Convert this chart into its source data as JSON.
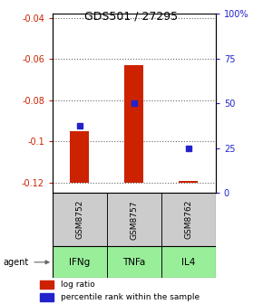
{
  "title": "GDS501 / 27295",
  "samples": [
    "GSM8752",
    "GSM8757",
    "GSM8762"
  ],
  "agents": [
    "IFNg",
    "TNFa",
    "IL4"
  ],
  "log_ratios": [
    -0.095,
    -0.063,
    -0.119
  ],
  "log_ratio_base": -0.12,
  "percentile_ranks": [
    37.5,
    50.0,
    25.0
  ],
  "ylim_left": [
    -0.125,
    -0.038
  ],
  "ylim_right": [
    0,
    100
  ],
  "yticks_left": [
    -0.12,
    -0.1,
    -0.08,
    -0.06,
    -0.04
  ],
  "yticks_right": [
    0,
    25,
    50,
    75,
    100
  ],
  "bar_color": "#cc2200",
  "dot_color": "#2222cc",
  "agent_bg_color": "#99ee99",
  "sample_bg_color": "#cccccc",
  "grid_color": "#666666",
  "title_color": "#000000",
  "left_tick_color": "#cc2200",
  "right_tick_color": "#2222cc",
  "legend_bar_label": "log ratio",
  "legend_dot_label": "percentile rank within the sample",
  "bar_width": 0.35
}
